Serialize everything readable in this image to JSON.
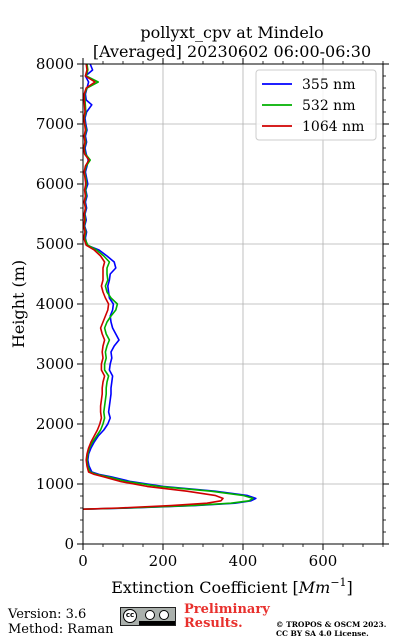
{
  "chart_data": {
    "type": "line",
    "title": "pollyxt_cpv at Mindelo",
    "subtitle": "[Averaged] 20230602 06:00-06:30",
    "xlabel": "Extinction Coefficient [",
    "xlabel_unit": "Mm",
    "xlabel_exp": "−1",
    "xlabel_close": "]",
    "ylabel": "Height (m)",
    "xlim": [
      0,
      750
    ],
    "ylim": [
      0,
      8000
    ],
    "xticks": [
      0,
      200,
      400,
      600
    ],
    "yticks": [
      0,
      1000,
      2000,
      3000,
      4000,
      5000,
      6000,
      7000,
      8000
    ],
    "grid": true,
    "legend_position": "top-right",
    "series": [
      {
        "name": "355 nm",
        "color": "#0000ff",
        "points": [
          [
            0,
            580
          ],
          [
            120,
            600
          ],
          [
            280,
            640
          ],
          [
            380,
            680
          ],
          [
            420,
            720
          ],
          [
            432,
            760
          ],
          [
            410,
            810
          ],
          [
            330,
            880
          ],
          [
            200,
            960
          ],
          [
            120,
            1040
          ],
          [
            70,
            1120
          ],
          [
            40,
            1160
          ],
          [
            22,
            1200
          ],
          [
            15,
            1300
          ],
          [
            12,
            1400
          ],
          [
            14,
            1500
          ],
          [
            20,
            1600
          ],
          [
            28,
            1700
          ],
          [
            38,
            1800
          ],
          [
            52,
            1900
          ],
          [
            62,
            2000
          ],
          [
            68,
            2100
          ],
          [
            64,
            2200
          ],
          [
            66,
            2300
          ],
          [
            68,
            2400
          ],
          [
            70,
            2500
          ],
          [
            70,
            2600
          ],
          [
            72,
            2700
          ],
          [
            74,
            2800
          ],
          [
            66,
            2900
          ],
          [
            68,
            3000
          ],
          [
            72,
            3100
          ],
          [
            70,
            3200
          ],
          [
            78,
            3300
          ],
          [
            90,
            3400
          ],
          [
            82,
            3500
          ],
          [
            74,
            3600
          ],
          [
            70,
            3700
          ],
          [
            68,
            3800
          ],
          [
            74,
            3900
          ],
          [
            76,
            4000
          ],
          [
            66,
            4100
          ],
          [
            64,
            4200
          ],
          [
            62,
            4300
          ],
          [
            66,
            4400
          ],
          [
            68,
            4500
          ],
          [
            82,
            4600
          ],
          [
            78,
            4700
          ],
          [
            60,
            4800
          ],
          [
            40,
            4900
          ],
          [
            10,
            4980
          ],
          [
            6,
            5100
          ],
          [
            9,
            5200
          ],
          [
            4,
            5300
          ],
          [
            8,
            5400
          ],
          [
            5,
            5500
          ],
          [
            9,
            5600
          ],
          [
            6,
            5700
          ],
          [
            10,
            5800
          ],
          [
            7,
            5900
          ],
          [
            12,
            6000
          ],
          [
            9,
            6100
          ],
          [
            6,
            6200
          ],
          [
            10,
            6300
          ],
          [
            13,
            6400
          ],
          [
            8,
            6500
          ],
          [
            5,
            6600
          ],
          [
            9,
            6700
          ],
          [
            6,
            6800
          ],
          [
            10,
            6900
          ],
          [
            7,
            7000
          ],
          [
            5,
            7100
          ],
          [
            9,
            7200
          ],
          [
            22,
            7320
          ],
          [
            8,
            7400
          ],
          [
            6,
            7500
          ],
          [
            10,
            7600
          ],
          [
            14,
            7700
          ],
          [
            6,
            7800
          ],
          [
            24,
            7900
          ],
          [
            18,
            8000
          ]
        ]
      },
      {
        "name": "532 nm",
        "color": "#00b000",
        "points": [
          [
            0,
            580
          ],
          [
            110,
            600
          ],
          [
            270,
            640
          ],
          [
            370,
            680
          ],
          [
            415,
            720
          ],
          [
            425,
            760
          ],
          [
            400,
            810
          ],
          [
            320,
            880
          ],
          [
            190,
            960
          ],
          [
            110,
            1040
          ],
          [
            62,
            1120
          ],
          [
            34,
            1160
          ],
          [
            18,
            1200
          ],
          [
            12,
            1300
          ],
          [
            10,
            1400
          ],
          [
            12,
            1500
          ],
          [
            16,
            1600
          ],
          [
            24,
            1700
          ],
          [
            34,
            1800
          ],
          [
            44,
            1900
          ],
          [
            50,
            2000
          ],
          [
            54,
            2100
          ],
          [
            52,
            2200
          ],
          [
            54,
            2300
          ],
          [
            56,
            2400
          ],
          [
            58,
            2500
          ],
          [
            58,
            2600
          ],
          [
            60,
            2700
          ],
          [
            64,
            2800
          ],
          [
            54,
            2900
          ],
          [
            54,
            3000
          ],
          [
            58,
            3100
          ],
          [
            56,
            3200
          ],
          [
            60,
            3300
          ],
          [
            66,
            3400
          ],
          [
            58,
            3500
          ],
          [
            54,
            3600
          ],
          [
            60,
            3700
          ],
          [
            70,
            3800
          ],
          [
            82,
            3900
          ],
          [
            86,
            4000
          ],
          [
            70,
            4100
          ],
          [
            60,
            4200
          ],
          [
            56,
            4300
          ],
          [
            62,
            4400
          ],
          [
            60,
            4500
          ],
          [
            60,
            4600
          ],
          [
            66,
            4700
          ],
          [
            52,
            4800
          ],
          [
            34,
            4900
          ],
          [
            12,
            4980
          ],
          [
            4,
            5100
          ],
          [
            7,
            5200
          ],
          [
            3,
            5300
          ],
          [
            6,
            5400
          ],
          [
            4,
            5500
          ],
          [
            7,
            5600
          ],
          [
            4,
            5700
          ],
          [
            8,
            5800
          ],
          [
            6,
            5900
          ],
          [
            9,
            6000
          ],
          [
            7,
            6100
          ],
          [
            4,
            6200
          ],
          [
            8,
            6300
          ],
          [
            18,
            6400
          ],
          [
            6,
            6500
          ],
          [
            3,
            6600
          ],
          [
            7,
            6700
          ],
          [
            4,
            6800
          ],
          [
            8,
            6900
          ],
          [
            5,
            7000
          ],
          [
            3,
            7100
          ],
          [
            7,
            7200
          ],
          [
            6,
            7300
          ],
          [
            5,
            7400
          ],
          [
            4,
            7500
          ],
          [
            10,
            7600
          ],
          [
            38,
            7700
          ],
          [
            8,
            7800
          ],
          [
            12,
            7900
          ],
          [
            10,
            8000
          ]
        ]
      },
      {
        "name": "1064 nm",
        "color": "#d00000",
        "points": [
          [
            0,
            580
          ],
          [
            90,
            600
          ],
          [
            220,
            640
          ],
          [
            310,
            680
          ],
          [
            345,
            720
          ],
          [
            350,
            760
          ],
          [
            330,
            810
          ],
          [
            260,
            880
          ],
          [
            160,
            960
          ],
          [
            95,
            1040
          ],
          [
            52,
            1120
          ],
          [
            28,
            1160
          ],
          [
            14,
            1200
          ],
          [
            10,
            1300
          ],
          [
            8,
            1400
          ],
          [
            10,
            1500
          ],
          [
            14,
            1600
          ],
          [
            20,
            1700
          ],
          [
            28,
            1800
          ],
          [
            36,
            1900
          ],
          [
            42,
            2000
          ],
          [
            46,
            2100
          ],
          [
            44,
            2200
          ],
          [
            44,
            2300
          ],
          [
            46,
            2400
          ],
          [
            48,
            2500
          ],
          [
            48,
            2600
          ],
          [
            50,
            2700
          ],
          [
            54,
            2800
          ],
          [
            46,
            2900
          ],
          [
            46,
            3000
          ],
          [
            50,
            3100
          ],
          [
            48,
            3200
          ],
          [
            50,
            3300
          ],
          [
            54,
            3400
          ],
          [
            48,
            3500
          ],
          [
            44,
            3600
          ],
          [
            50,
            3700
          ],
          [
            56,
            3800
          ],
          [
            62,
            3900
          ],
          [
            64,
            4000
          ],
          [
            56,
            4100
          ],
          [
            50,
            4200
          ],
          [
            46,
            4300
          ],
          [
            50,
            4400
          ],
          [
            50,
            4500
          ],
          [
            50,
            4600
          ],
          [
            54,
            4700
          ],
          [
            44,
            4800
          ],
          [
            28,
            4900
          ],
          [
            8,
            4980
          ],
          [
            2,
            5100
          ],
          [
            5,
            5200
          ],
          [
            2,
            5300
          ],
          [
            4,
            5400
          ],
          [
            3,
            5500
          ],
          [
            6,
            5600
          ],
          [
            3,
            5700
          ],
          [
            6,
            5800
          ],
          [
            4,
            5900
          ],
          [
            7,
            6000
          ],
          [
            5,
            6100
          ],
          [
            3,
            6200
          ],
          [
            6,
            6300
          ],
          [
            15,
            6400
          ],
          [
            4,
            6500
          ],
          [
            2,
            6600
          ],
          [
            5,
            6700
          ],
          [
            3,
            6800
          ],
          [
            6,
            6900
          ],
          [
            4,
            7000
          ],
          [
            2,
            7100
          ],
          [
            5,
            7200
          ],
          [
            4,
            7300
          ],
          [
            3,
            7400
          ],
          [
            3,
            7500
          ],
          [
            8,
            7600
          ],
          [
            30,
            7700
          ],
          [
            6,
            7800
          ],
          [
            10,
            7900
          ],
          [
            8,
            8000
          ]
        ]
      }
    ]
  },
  "footer": {
    "version": "Version: 3.6",
    "method": "Method: Raman",
    "preliminary_line1": "Preliminary",
    "preliminary_line2": "Results.",
    "copyright_line1": "© TROPOS & OSCM 2023.",
    "copyright_line2": "CC BY SA 4.0 License."
  },
  "badge": {
    "text": "cc",
    "icon": "cc-by-sa-icon"
  }
}
